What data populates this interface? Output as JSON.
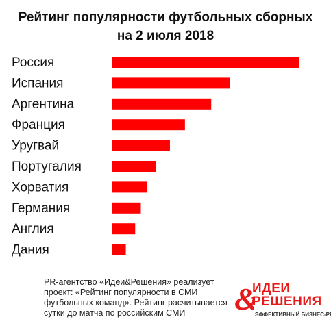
{
  "title_line1": "Рейтинг популярности футбольных сборных",
  "title_line2": "на 2 июля 2018",
  "chart_data": {
    "type": "bar",
    "orientation": "horizontal",
    "title": "Рейтинг популярности футбольных сборных на 2 июля 2018",
    "categories": [
      "Россия",
      "Испания",
      "Аргентина",
      "Франция",
      "Уругвай",
      "Португалия",
      "Хорватия",
      "Германия",
      "Англия",
      "Дания"
    ],
    "values": [
      100,
      63,
      53,
      39,
      31,
      23.5,
      19,
      15.5,
      12.5,
      7.5
    ],
    "bar_color": "#ff0000",
    "xlabel": "",
    "ylabel": "",
    "grid": false,
    "axes_visible": false
  },
  "footer": {
    "text": "PR-агентство «Идеи&Решения» реализует проект: «Рейтинг популярности в СМИ футбольных команд». Рейтинг расчитывается сутки до матча по российским СМИ"
  },
  "logo": {
    "line1": "ИДЕИ",
    "line2": "РЕШЕНИЯ",
    "tagline": "ЭФФЕКТИВНЫЙ БИЗНЕС-PR",
    "color": "#e51a1a"
  }
}
